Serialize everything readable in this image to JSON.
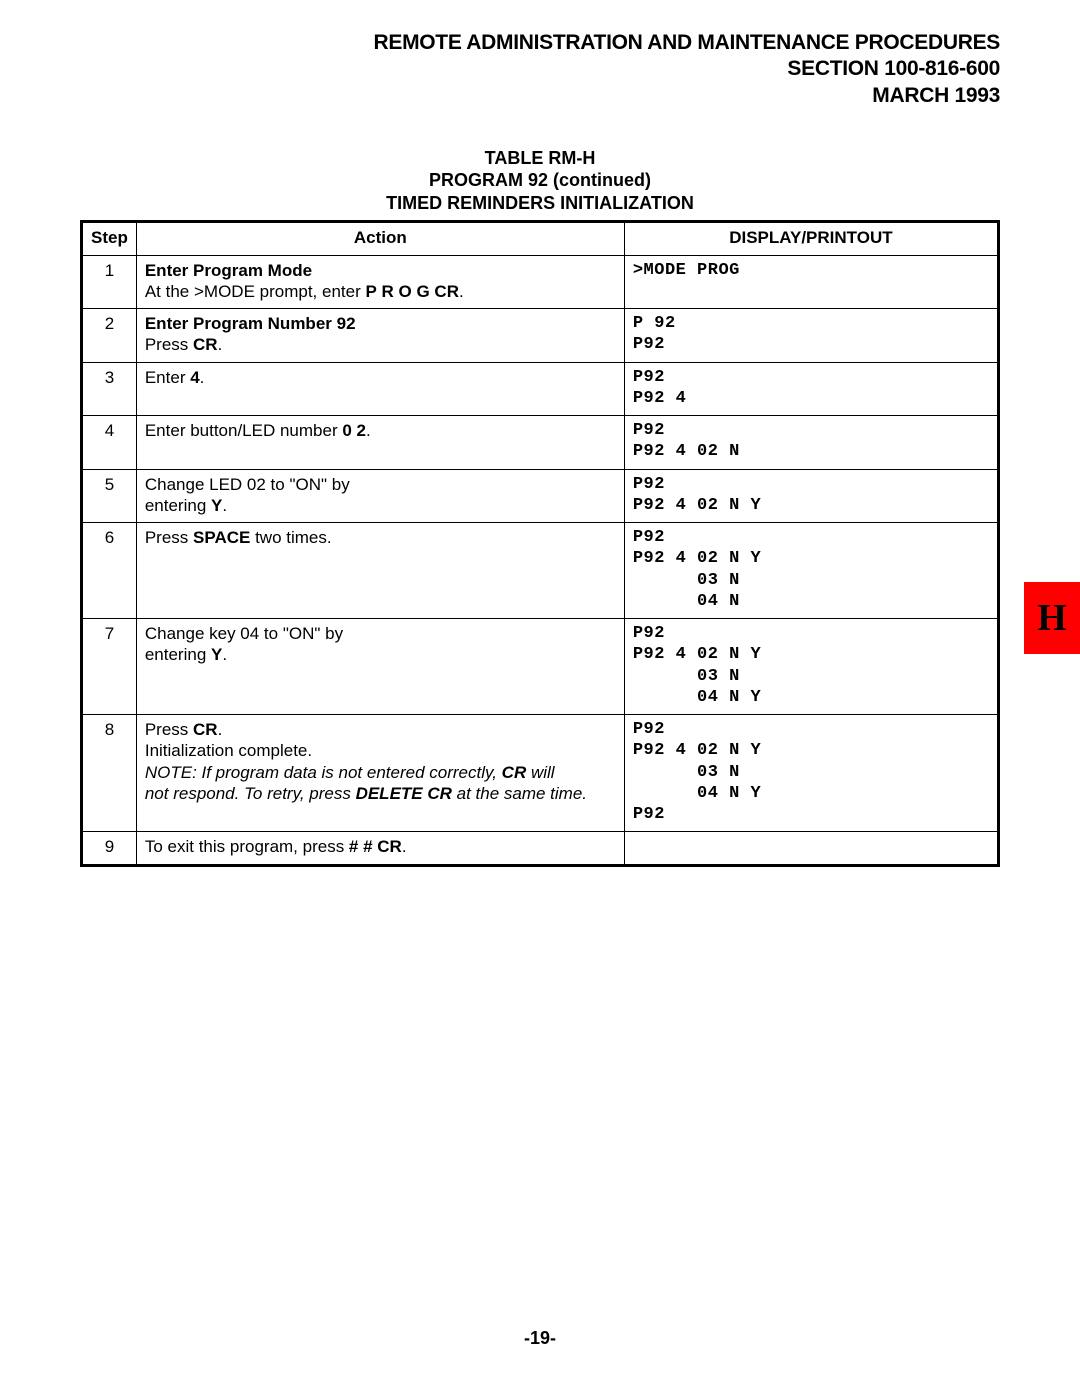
{
  "header": {
    "line1": "REMOTE ADMINISTRATION AND MAINTENANCE PROCEDURES",
    "line2": "SECTION 100-816-600",
    "line3": "MARCH 1993"
  },
  "table_title": {
    "line1": "TABLE RM-H",
    "line2": "PROGRAM 92 (continued)",
    "line3": "TIMED REMINDERS INITIALIZATION"
  },
  "columns": {
    "step": "Step",
    "action": "Action",
    "display": "DISPLAY/PRINTOUT"
  },
  "rows": [
    {
      "step": "1",
      "action_html": "<span class='b'>Enter Program Mode</span><br>At the &gt;MODE prompt, enter <span class='b'>P&nbsp;R&nbsp;O&nbsp;G CR</span>.",
      "display": ">MODE PROG"
    },
    {
      "step": "2",
      "action_html": "<span class='b'>Enter Program Number 92</span><br>Press <span class='b'>CR</span>.",
      "display": "P 92\nP92"
    },
    {
      "step": "3",
      "action_html": "Enter <span class='b'>4</span>.",
      "display": "P92\nP92 4"
    },
    {
      "step": "4",
      "action_html": "Enter button/LED number <span class='b'>0&nbsp;2</span>.",
      "display": "P92\nP92 4 02 N"
    },
    {
      "step": "5",
      "action_html": "Change LED 02 to \"ON\" by<br>entering <span class='b'>Y</span>.",
      "display": "P92\nP92 4 02 N Y"
    },
    {
      "step": "6",
      "action_html": "Press <span class='b'>SPACE</span> two times.",
      "display": "P92\nP92 4 02 N Y\n      03 N\n      04 N"
    },
    {
      "step": "7",
      "action_html": "Change key 04 to \"ON\" by<br>entering <span class='b'>Y</span>.",
      "display": "P92\nP92 4 02 N Y\n      03 N\n      04 N Y"
    },
    {
      "step": "8",
      "action_html": "Press <span class='b'>CR</span>.<br>Initialization complete.<br><span class='i'>NOTE: If program data is not entered correctly, </span><span class='b i'>CR</span><span class='i'>&nbsp;will<br>not respond. To retry, press </span><span class='b i'>DELETE CR</span><span class='i'>&nbsp;at the same time.</span>",
      "display": "P92\nP92 4 02 N Y\n      03 N\n      04 N Y\nP92"
    },
    {
      "step": "9",
      "action_html": "To exit this program, press <span class='b'># # CR</span>.",
      "display": ""
    }
  ],
  "side_tab": "H",
  "page_number": "-19-",
  "colors": {
    "tab_bg": "#ff0000",
    "border": "#000000",
    "bg": "#ffffff"
  }
}
